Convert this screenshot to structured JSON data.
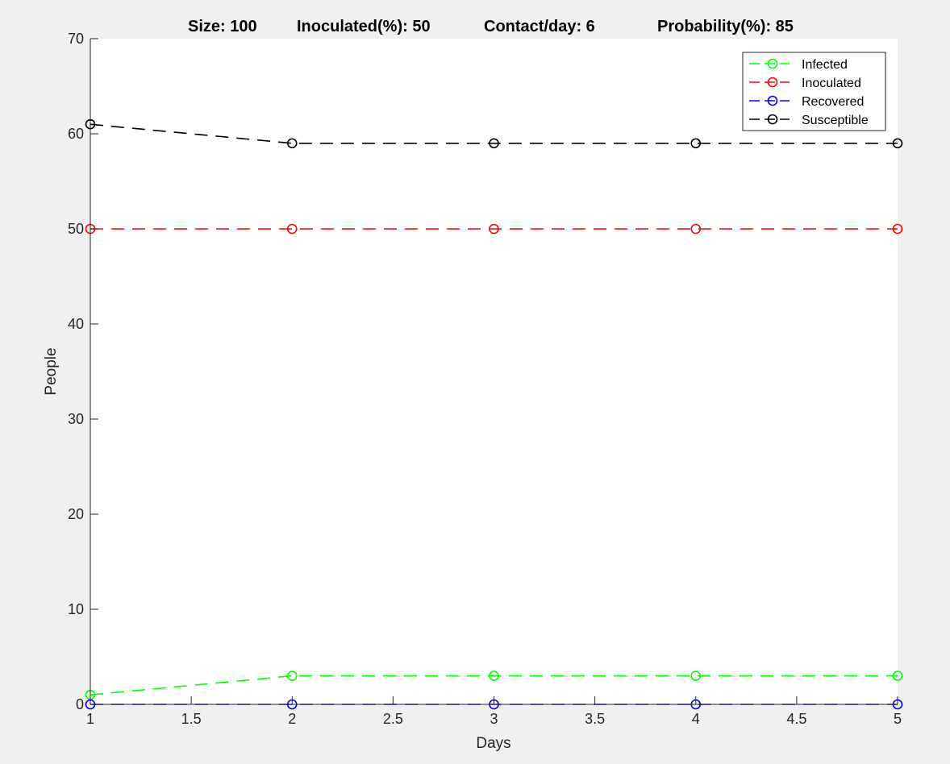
{
  "header": {
    "items": [
      "Size: 100",
      "Inoculated(%): 50",
      "Contact/day: 6",
      "Probability(%): 85"
    ]
  },
  "colors": {
    "figure_background": "#f0f0f0",
    "axes_background": "#ffffff",
    "axis": "#262626"
  },
  "chart_data": {
    "type": "line",
    "xlabel": "Days",
    "ylabel": "People",
    "xlim": [
      1,
      5
    ],
    "ylim": [
      0,
      70
    ],
    "x_ticks": [
      1,
      1.5,
      2,
      2.5,
      3,
      3.5,
      4,
      4.5,
      5
    ],
    "x_tick_labels": [
      "1",
      "1.5",
      "2",
      "2.5",
      "3",
      "3.5",
      "4",
      "4.5",
      "5"
    ],
    "y_ticks": [
      0,
      10,
      20,
      30,
      40,
      50,
      60,
      70
    ],
    "y_tick_labels": [
      "0",
      "10",
      "20",
      "30",
      "40",
      "50",
      "60",
      "70"
    ],
    "grid": false,
    "legend_position": "top-right",
    "line_style": "dashed",
    "marker": "circle",
    "x": [
      1,
      2,
      3,
      4,
      5
    ],
    "series": [
      {
        "name": "Infected",
        "color": "#00ff00",
        "values": [
          1,
          3,
          3,
          3,
          3
        ]
      },
      {
        "name": "Inoculated",
        "color": "#ff0000",
        "values": [
          50,
          50,
          50,
          50,
          50
        ]
      },
      {
        "name": "Recovered",
        "color": "#0000ff",
        "values": [
          0,
          0,
          0,
          0,
          0
        ]
      },
      {
        "name": "Susceptible",
        "color": "#000000",
        "values": [
          61,
          59,
          59,
          59,
          59
        ]
      }
    ]
  }
}
